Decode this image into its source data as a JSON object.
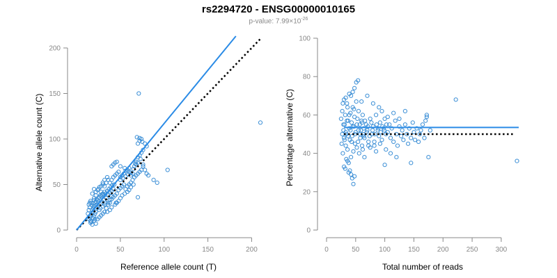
{
  "header": {
    "title": "rs2294720 - ENSG00000010165",
    "pvalue_prefix": "p-value: 7.99×10",
    "pvalue_exponent": "-26"
  },
  "colors": {
    "points": "#3c8fd6",
    "fit_line": "#2a8be6",
    "reference_line": "#000000",
    "axis": "#888888",
    "tick_text": "#888888"
  },
  "chart_data": [
    {
      "type": "scatter",
      "title": "",
      "xlabel": "Reference allele count (T)",
      "ylabel": "Alternative allele count (C)",
      "xlim": [
        0,
        210
      ],
      "ylim": [
        0,
        200
      ],
      "xticks": [
        0,
        50,
        100,
        150,
        200
      ],
      "yticks": [
        0,
        50,
        100,
        150,
        200
      ],
      "fit_line": {
        "slope": 1.17,
        "x_range": [
          0,
          182
        ]
      },
      "reference_line": {
        "slope": 1.0,
        "x_range": [
          0,
          210
        ],
        "style": "dotted"
      },
      "points": [
        [
          14,
          12
        ],
        [
          15,
          14
        ],
        [
          16,
          16
        ],
        [
          17,
          17
        ],
        [
          18,
          19
        ],
        [
          19,
          13
        ],
        [
          20,
          15
        ],
        [
          21,
          18
        ],
        [
          22,
          20
        ],
        [
          13,
          18
        ],
        [
          14,
          22
        ],
        [
          15,
          25
        ],
        [
          16,
          10
        ],
        [
          17,
          9
        ],
        [
          18,
          22
        ],
        [
          19,
          24
        ],
        [
          20,
          26
        ],
        [
          21,
          12
        ],
        [
          22,
          24
        ],
        [
          23,
          28
        ],
        [
          14,
          28
        ],
        [
          15,
          30
        ],
        [
          16,
          32
        ],
        [
          17,
          30
        ],
        [
          18,
          27
        ],
        [
          19,
          29
        ],
        [
          20,
          33
        ],
        [
          21,
          30
        ],
        [
          22,
          31
        ],
        [
          23,
          34
        ],
        [
          24,
          25
        ],
        [
          25,
          27
        ],
        [
          26,
          22
        ],
        [
          27,
          24
        ],
        [
          28,
          29
        ],
        [
          29,
          31
        ],
        [
          30,
          26
        ],
        [
          31,
          33
        ],
        [
          32,
          28
        ],
        [
          33,
          30
        ],
        [
          24,
          33
        ],
        [
          25,
          35
        ],
        [
          26,
          36
        ],
        [
          27,
          38
        ],
        [
          28,
          37
        ],
        [
          29,
          39
        ],
        [
          30,
          40
        ],
        [
          31,
          38
        ],
        [
          32,
          42
        ],
        [
          33,
          40
        ],
        [
          34,
          35
        ],
        [
          35,
          43
        ],
        [
          36,
          39
        ],
        [
          37,
          45
        ],
        [
          38,
          41
        ],
        [
          39,
          47
        ],
        [
          40,
          43
        ],
        [
          41,
          49
        ],
        [
          42,
          45
        ],
        [
          43,
          50
        ],
        [
          18,
          40
        ],
        [
          20,
          45
        ],
        [
          22,
          38
        ],
        [
          24,
          44
        ],
        [
          26,
          47
        ],
        [
          28,
          42
        ],
        [
          30,
          50
        ],
        [
          32,
          48
        ],
        [
          34,
          52
        ],
        [
          36,
          55
        ],
        [
          16,
          8
        ],
        [
          18,
          6
        ],
        [
          20,
          10
        ],
        [
          22,
          7
        ],
        [
          24,
          12
        ],
        [
          26,
          14
        ],
        [
          28,
          16
        ],
        [
          30,
          18
        ],
        [
          32,
          20
        ],
        [
          34,
          24
        ],
        [
          36,
          28
        ],
        [
          38,
          30
        ],
        [
          40,
          34
        ],
        [
          42,
          36
        ],
        [
          44,
          38
        ],
        [
          46,
          40
        ],
        [
          48,
          44
        ],
        [
          50,
          46
        ],
        [
          52,
          48
        ],
        [
          54,
          50
        ],
        [
          38,
          52
        ],
        [
          40,
          55
        ],
        [
          42,
          58
        ],
        [
          44,
          60
        ],
        [
          46,
          62
        ],
        [
          48,
          64
        ],
        [
          50,
          58
        ],
        [
          52,
          60
        ],
        [
          54,
          62
        ],
        [
          56,
          65
        ],
        [
          40,
          70
        ],
        [
          42,
          72
        ],
        [
          44,
          74
        ],
        [
          46,
          75
        ],
        [
          50,
          70
        ],
        [
          55,
          68
        ],
        [
          58,
          66
        ],
        [
          60,
          64
        ],
        [
          62,
          60
        ],
        [
          64,
          62
        ],
        [
          56,
          45
        ],
        [
          58,
          48
        ],
        [
          60,
          50
        ],
        [
          62,
          52
        ],
        [
          64,
          55
        ],
        [
          66,
          58
        ],
        [
          68,
          60
        ],
        [
          70,
          62
        ],
        [
          72,
          64
        ],
        [
          74,
          66
        ],
        [
          66,
          70
        ],
        [
          68,
          75
        ],
        [
          70,
          80
        ],
        [
          72,
          82
        ],
        [
          74,
          85
        ],
        [
          76,
          88
        ],
        [
          70,
          95
        ],
        [
          72,
          98
        ],
        [
          74,
          100
        ],
        [
          69,
          102
        ],
        [
          72,
          101
        ],
        [
          75,
          97
        ],
        [
          78,
          95
        ],
        [
          80,
          92
        ],
        [
          68,
          72
        ],
        [
          70,
          74
        ],
        [
          76,
          70
        ],
        [
          78,
          66
        ],
        [
          80,
          62
        ],
        [
          82,
          60
        ],
        [
          45,
          30
        ],
        [
          48,
          32
        ],
        [
          50,
          35
        ],
        [
          52,
          38
        ],
        [
          55,
          40
        ],
        [
          58,
          42
        ],
        [
          60,
          44
        ],
        [
          62,
          47
        ],
        [
          65,
          50
        ],
        [
          70,
          36
        ],
        [
          88,
          55
        ],
        [
          92,
          52
        ],
        [
          104,
          66
        ],
        [
          71,
          150
        ],
        [
          210,
          118
        ],
        [
          35,
          20
        ],
        [
          38,
          22
        ],
        [
          40,
          25
        ],
        [
          44,
          28
        ],
        [
          46,
          30
        ],
        [
          20,
          35
        ],
        [
          22,
          42
        ],
        [
          25,
          45
        ],
        [
          28,
          48
        ],
        [
          30,
          52
        ],
        [
          32,
          55
        ],
        [
          35,
          58
        ],
        [
          36,
          30
        ],
        [
          38,
          33
        ],
        [
          40,
          37
        ],
        [
          50,
          55
        ],
        [
          53,
          57
        ],
        [
          56,
          59
        ],
        [
          59,
          61
        ],
        [
          62,
          63
        ],
        [
          65,
          67
        ],
        [
          67,
          73
        ],
        [
          73,
          78
        ],
        [
          76,
          72
        ],
        [
          60,
          68
        ]
      ]
    },
    {
      "type": "scatter",
      "title": "",
      "xlabel": "Total number of reads",
      "ylabel": "Percentage alternative (C)",
      "xlim": [
        0,
        330
      ],
      "ylim": [
        0,
        100
      ],
      "xticks": [
        0,
        50,
        100,
        150,
        200,
        250,
        300
      ],
      "yticks": [
        0,
        20,
        40,
        60,
        80,
        100
      ],
      "fit_line": {
        "y": 53.5,
        "x_range": [
          30,
          330
        ]
      },
      "reference_line": {
        "y": 50,
        "x_range": [
          30,
          320
        ],
        "style": "dotted"
      },
      "points": [
        [
          25,
          58
        ],
        [
          26,
          45
        ],
        [
          27,
          62
        ],
        [
          28,
          40
        ],
        [
          29,
          52
        ],
        [
          30,
          48
        ],
        [
          31,
          55
        ],
        [
          32,
          60
        ],
        [
          33,
          44
        ],
        [
          34,
          50
        ],
        [
          35,
          66
        ],
        [
          36,
          42
        ],
        [
          37,
          57
        ],
        [
          38,
          35
        ],
        [
          39,
          53
        ],
        [
          40,
          47
        ],
        [
          41,
          61
        ],
        [
          42,
          38
        ],
        [
          43,
          56
        ],
        [
          44,
          49
        ],
        [
          45,
          64
        ],
        [
          46,
          41
        ],
        [
          47,
          54
        ],
        [
          48,
          59
        ],
        [
          49,
          45
        ],
        [
          50,
          51
        ],
        [
          51,
          67
        ],
        [
          52,
          43
        ],
        [
          53,
          58
        ],
        [
          54,
          46
        ],
        [
          55,
          62
        ],
        [
          56,
          40
        ],
        [
          57,
          55
        ],
        [
          58,
          48
        ],
        [
          59,
          52
        ],
        [
          60,
          57
        ],
        [
          61,
          44
        ],
        [
          62,
          60
        ],
        [
          63,
          50
        ],
        [
          64,
          53
        ],
        [
          30,
          33
        ],
        [
          32,
          32
        ],
        [
          34,
          37
        ],
        [
          36,
          36
        ],
        [
          38,
          30
        ],
        [
          40,
          31
        ],
        [
          42,
          29
        ],
        [
          44,
          27
        ],
        [
          46,
          24
        ],
        [
          48,
          28
        ],
        [
          28,
          66
        ],
        [
          30,
          68
        ],
        [
          33,
          69
        ],
        [
          36,
          64
        ],
        [
          39,
          71
        ],
        [
          42,
          70
        ],
        [
          45,
          72
        ],
        [
          48,
          74
        ],
        [
          51,
          77
        ],
        [
          54,
          78
        ],
        [
          65,
          48
        ],
        [
          68,
          55
        ],
        [
          70,
          52
        ],
        [
          72,
          46
        ],
        [
          75,
          58
        ],
        [
          78,
          50
        ],
        [
          80,
          54
        ],
        [
          82,
          44
        ],
        [
          85,
          60
        ],
        [
          88,
          52
        ],
        [
          90,
          49
        ],
        [
          92,
          56
        ],
        [
          95,
          47
        ],
        [
          98,
          53
        ],
        [
          100,
          58
        ],
        [
          102,
          42
        ],
        [
          105,
          51
        ],
        [
          108,
          55
        ],
        [
          110,
          48
        ],
        [
          112,
          53
        ],
        [
          115,
          46
        ],
        [
          118,
          57
        ],
        [
          120,
          50
        ],
        [
          122,
          44
        ],
        [
          125,
          54
        ],
        [
          128,
          49
        ],
        [
          130,
          52
        ],
        [
          132,
          47
        ],
        [
          135,
          55
        ],
        [
          138,
          50
        ],
        [
          140,
          45
        ],
        [
          142,
          53
        ],
        [
          145,
          48
        ],
        [
          148,
          56
        ],
        [
          150,
          51
        ],
        [
          152,
          47
        ],
        [
          155,
          53
        ],
        [
          158,
          46
        ],
        [
          160,
          50
        ],
        [
          162,
          52
        ],
        [
          165,
          55
        ],
        [
          168,
          48
        ],
        [
          170,
          57
        ],
        [
          172,
          59
        ],
        [
          175,
          38
        ],
        [
          172,
          60
        ],
        [
          178,
          52
        ],
        [
          145,
          35
        ],
        [
          222,
          68
        ],
        [
          327,
          36
        ],
        [
          100,
          34
        ],
        [
          110,
          40
        ],
        [
          120,
          38
        ],
        [
          60,
          67
        ],
        [
          70,
          70
        ],
        [
          80,
          66
        ],
        [
          90,
          64
        ],
        [
          65,
          38
        ],
        [
          75,
          43
        ],
        [
          85,
          41
        ],
        [
          95,
          62
        ],
        [
          105,
          59
        ],
        [
          115,
          61
        ],
        [
          125,
          58
        ],
        [
          135,
          62
        ],
        [
          62,
          42
        ],
        [
          72,
          44
        ],
        [
          82,
          46
        ],
        [
          92,
          45
        ],
        [
          102,
          50
        ],
        [
          27,
          50
        ],
        [
          29,
          55
        ],
        [
          31,
          47
        ],
        [
          33,
          51
        ],
        [
          35,
          57
        ],
        [
          37,
          49
        ],
        [
          39,
          60
        ],
        [
          41,
          52
        ],
        [
          43,
          46
        ],
        [
          45,
          54
        ],
        [
          47,
          63
        ],
        [
          49,
          50
        ],
        [
          52,
          55
        ],
        [
          55,
          52
        ],
        [
          58,
          50
        ],
        [
          61,
          56
        ],
        [
          64,
          49
        ],
        [
          66,
          57
        ],
        [
          69,
          51
        ],
        [
          71,
          54
        ],
        [
          74,
          49
        ],
        [
          77,
          56
        ],
        [
          79,
          52
        ],
        [
          83,
          50
        ],
        [
          86,
          55
        ],
        [
          89,
          53
        ],
        [
          93,
          51
        ],
        [
          96,
          54
        ],
        [
          99,
          52
        ],
        [
          103,
          55
        ]
      ]
    }
  ]
}
